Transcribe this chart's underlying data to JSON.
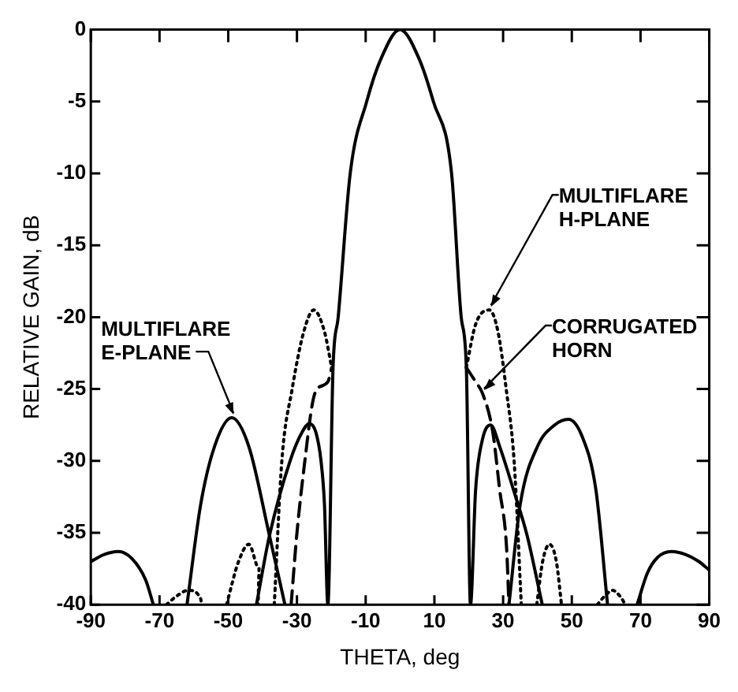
{
  "chart_data": {
    "type": "line",
    "xlabel": "THETA, deg",
    "ylabel": "RELATIVE GAIN, dB",
    "xlim": [
      -90,
      90
    ],
    "ylim": [
      -40,
      0
    ],
    "xticks": [
      -90,
      -70,
      -50,
      -30,
      -10,
      10,
      30,
      50,
      70,
      90
    ],
    "yticks": [
      0,
      -5,
      -10,
      -15,
      -20,
      -25,
      -30,
      -35,
      -40
    ],
    "grid": false,
    "legend": false,
    "marker": "none",
    "series": [
      {
        "color": "#000000",
        "line_style": "solid",
        "x": [
          -90,
          -86,
          -82,
          -78,
          -74,
          -71.8,
          null,
          -62,
          -58,
          -54,
          -49,
          -44,
          -38,
          -33.5,
          null,
          31.7,
          35,
          40,
          45,
          49,
          53,
          57,
          60.4,
          null,
          69,
          72,
          75,
          79,
          83,
          87,
          90
        ],
        "values": [
          -37,
          -36.5,
          -36.3,
          -36.8,
          -38.3,
          -40,
          null,
          -40,
          -33,
          -29,
          -27,
          -29,
          -35.2,
          -40,
          null,
          -40,
          -33,
          -29,
          -27.5,
          -27.1,
          -28.3,
          -32,
          -40,
          null,
          -40,
          -37.8,
          -36.7,
          -36.3,
          -36.5,
          -37,
          -37.6
        ]
      },
      {
        "color": "#000000",
        "line_style": "solid",
        "x": [
          -41.8,
          -38,
          -32,
          -28.5,
          -26.4,
          -24.5,
          -23,
          -22,
          -21,
          -19.5,
          -18,
          -14.5,
          -9.7,
          -5.5,
          0,
          5.5,
          9.7,
          15,
          17.8,
          19.3,
          20.5,
          22,
          24,
          26.4,
          29,
          33,
          37,
          41.4
        ],
        "values": [
          -40,
          -35.2,
          -30,
          -28,
          -27.4,
          -28,
          -30,
          -33,
          -40,
          -23.5,
          -20,
          -10,
          -5,
          -2,
          0,
          -2,
          -5,
          -10,
          -20,
          -23.5,
          -40,
          -32,
          -28.5,
          -27.5,
          -29,
          -32,
          -35.2,
          -40
        ]
      },
      {
        "color": "#000000",
        "line_style": "dotted",
        "x": [
          -68,
          -65,
          -61.6,
          -58,
          -57.8,
          null,
          -50.5,
          -47,
          -44,
          -41,
          -41.3,
          null,
          -36.6,
          -34.4,
          -31.4,
          -28,
          -25.1,
          -22,
          -19.9,
          null,
          19.3,
          22,
          26,
          28.5,
          30.9,
          33.2,
          35.3,
          null,
          39.8,
          41.5,
          43.5,
          45.5,
          47,
          null,
          57.4,
          60,
          61.8,
          64,
          65.6
        ],
        "values": [
          -40,
          -39.4,
          -39,
          -39.6,
          -40,
          null,
          -40,
          -37,
          -35.8,
          -37.5,
          -40,
          null,
          -40,
          -30,
          -25,
          -21,
          -19.5,
          -21,
          -23.5,
          null,
          -23.5,
          -20.5,
          -19.5,
          -21,
          -25,
          -30,
          -40,
          null,
          -40,
          -37,
          -35.8,
          -37,
          -40,
          null,
          -40,
          -39.3,
          -39,
          -39.4,
          -40
        ]
      },
      {
        "color": "#000000",
        "line_style": "dashed",
        "x": [
          -31.7,
          -30,
          -27.7,
          -25.5,
          -24.2,
          -21,
          -19.9,
          null,
          19.3,
          22,
          24,
          27,
          29,
          31,
          31.7
        ],
        "values": [
          -40,
          -35,
          -30,
          -26,
          -25,
          -24.5,
          -23.5,
          null,
          -23.5,
          -24.5,
          -25.3,
          -28,
          -32,
          -36,
          -40
        ]
      }
    ],
    "annotations": [
      {
        "text": "MULTIFLARE E-PLANE",
        "x": -48,
        "y": -27
      },
      {
        "text": "MULTIFLARE H-PLANE",
        "x": 26,
        "y": -19.5
      },
      {
        "text": "CORRUGATED HORN",
        "x": 24,
        "y": -25.3
      }
    ]
  }
}
